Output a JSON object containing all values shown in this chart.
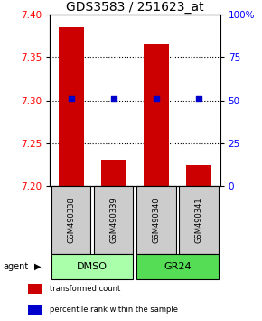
{
  "title": "GDS3583 / 251623_at",
  "samples": [
    "GSM490338",
    "GSM490339",
    "GSM490340",
    "GSM490341"
  ],
  "bar_values": [
    7.385,
    7.23,
    7.365,
    7.225
  ],
  "percentile_values": [
    51,
    51,
    51,
    51
  ],
  "ylim_left": [
    7.2,
    7.4
  ],
  "ylim_right": [
    0,
    100
  ],
  "yticks_left": [
    7.2,
    7.25,
    7.3,
    7.35,
    7.4
  ],
  "yticks_right": [
    0,
    25,
    50,
    75,
    100
  ],
  "ytick_labels_right": [
    "0",
    "25",
    "50",
    "75",
    "100%"
  ],
  "hlines": [
    7.25,
    7.3,
    7.35
  ],
  "bar_color": "#cc0000",
  "percentile_color": "#0000cc",
  "groups": [
    {
      "label": "DMSO",
      "indices": [
        0,
        1
      ],
      "color": "#aaffaa"
    },
    {
      "label": "GR24",
      "indices": [
        2,
        3
      ],
      "color": "#55dd55"
    }
  ],
  "agent_label": "agent",
  "legend_items": [
    {
      "color": "#cc0000",
      "label": "transformed count"
    },
    {
      "color": "#0000cc",
      "label": "percentile rank within the sample"
    }
  ],
  "sample_box_color": "#cccccc",
  "bar_width": 0.6,
  "title_fontsize": 10,
  "tick_fontsize": 7.5,
  "label_fontsize": 7
}
